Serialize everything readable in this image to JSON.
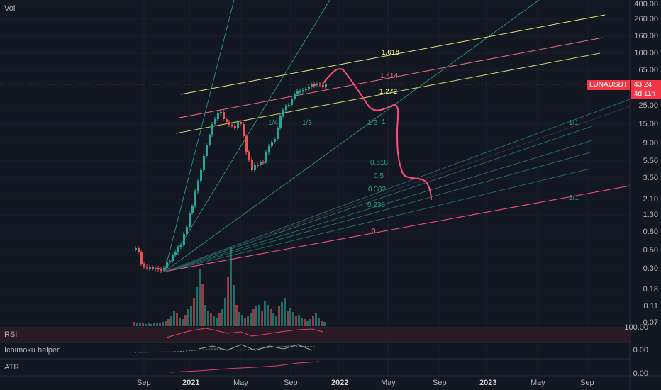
{
  "symbol": "LUNAUSDT",
  "last_price": "43.24",
  "countdown": "4d 11h",
  "colors": {
    "background": "#131722",
    "up": "#26a69a",
    "down": "#ef5350",
    "badge": "#f23645",
    "fib_yellow": "#e8e57a",
    "fib_red": "#f06a7a",
    "fan_teal": "#2a9d8f",
    "projection": "#ff4d7a"
  },
  "panels": {
    "vol_label": "Vol",
    "rsi_label": "RSI",
    "ichimoku_label": "Ichimoku helper",
    "atr_label": "ATR",
    "rsi_value": "100.00",
    "ichimoku_value": "0.00",
    "atr_value": "0.00"
  },
  "price_axis": [
    "400.00",
    "260.00",
    "160.00",
    "100.00",
    "65.00",
    "25.00",
    "15.00",
    "9.00",
    "5.50",
    "3.50",
    "2.10",
    "1.30",
    "0.80",
    "0.50",
    "0.30",
    "0.18",
    "0.11",
    "0.07"
  ],
  "time_axis": [
    {
      "label": "Sep",
      "bold": false
    },
    {
      "label": "2021",
      "bold": true
    },
    {
      "label": "May",
      "bold": false
    },
    {
      "label": "Sep",
      "bold": false
    },
    {
      "label": "2022",
      "bold": true
    },
    {
      "label": "May",
      "bold": false
    },
    {
      "label": "Sep",
      "bold": false
    },
    {
      "label": "2023",
      "bold": true
    },
    {
      "label": "May",
      "bold": false
    },
    {
      "label": "Sep",
      "bold": false
    }
  ],
  "fib_levels": [
    "1.618",
    "1.414",
    "1.272",
    "1",
    "0.618",
    "0.5",
    "0.382",
    "0.236",
    "0"
  ],
  "fan_labels": [
    "1/4",
    "1/3",
    "1/2",
    "1/1",
    "2/1"
  ]
}
